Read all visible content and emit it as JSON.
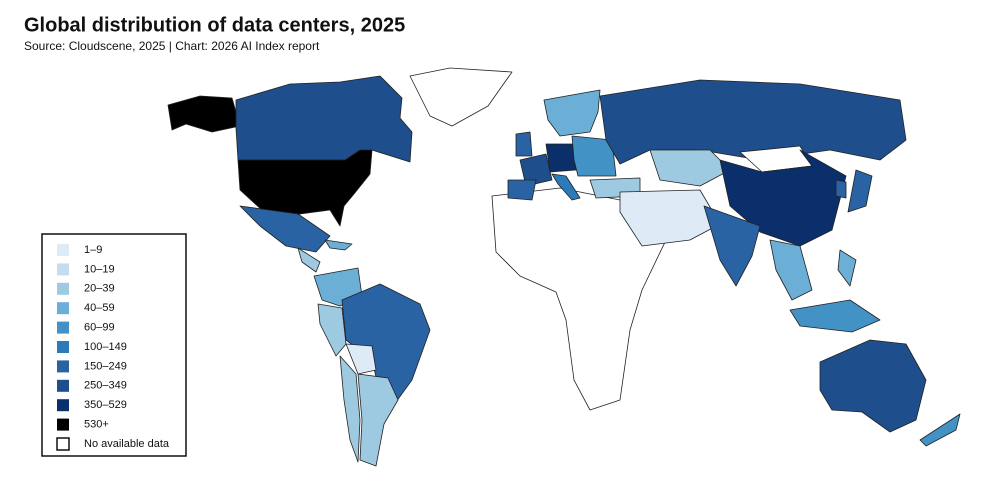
{
  "header": {
    "title": "Global distribution of data centers, 2025",
    "subtitle": "Source: Cloudscene, 2025 | Chart: 2026 AI Index report"
  },
  "legend": {
    "items": [
      {
        "label": "1–9",
        "color": "#deebf7"
      },
      {
        "label": "10–19",
        "color": "#c6dbef"
      },
      {
        "label": "20–39",
        "color": "#9ecae1"
      },
      {
        "label": "40–59",
        "color": "#6baed6"
      },
      {
        "label": "60–99",
        "color": "#4292c6"
      },
      {
        "label": "100–149",
        "color": "#2b7bba"
      },
      {
        "label": "150–249",
        "color": "#2a63a4"
      },
      {
        "label": "250–349",
        "color": "#1f4e8c"
      },
      {
        "label": "350–529",
        "color": "#0b2f6b"
      },
      {
        "label": "530+",
        "color": "#000000"
      },
      {
        "label": "No available data",
        "color": "#ffffff"
      }
    ]
  }
}
